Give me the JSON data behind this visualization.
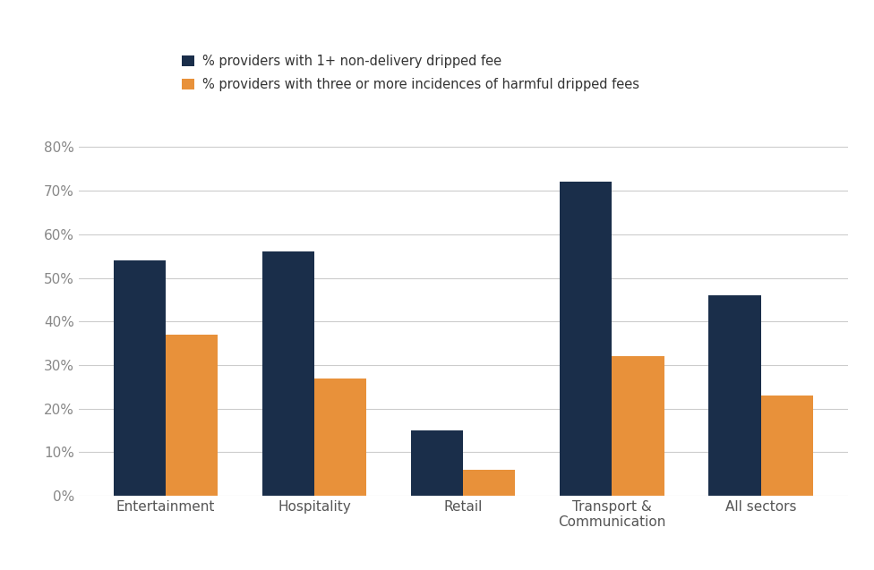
{
  "categories": [
    "Entertainment",
    "Hospitality",
    "Retail",
    "Transport &\nCommunication",
    "All sectors"
  ],
  "series1_label": "% providers with 1+ non-delivery dripped fee",
  "series2_label": "% providers with three or more incidences of harmful dripped fees",
  "series1_values": [
    0.54,
    0.56,
    0.15,
    0.72,
    0.46
  ],
  "series2_values": [
    0.37,
    0.27,
    0.06,
    0.32,
    0.23
  ],
  "series1_color": "#1a2e4a",
  "series2_color": "#e8913a",
  "ylim": [
    0,
    0.85
  ],
  "yticks": [
    0,
    0.1,
    0.2,
    0.3,
    0.4,
    0.5,
    0.6,
    0.7,
    0.8
  ],
  "bar_width": 0.35,
  "background_color": "#ffffff",
  "grid_color": "#cccccc",
  "tick_color": "#aaaaaa",
  "legend_fontsize": 10.5,
  "tick_fontsize": 11,
  "label_fontsize": 11,
  "figure_width": 9.76,
  "figure_height": 6.37,
  "dpi": 100
}
